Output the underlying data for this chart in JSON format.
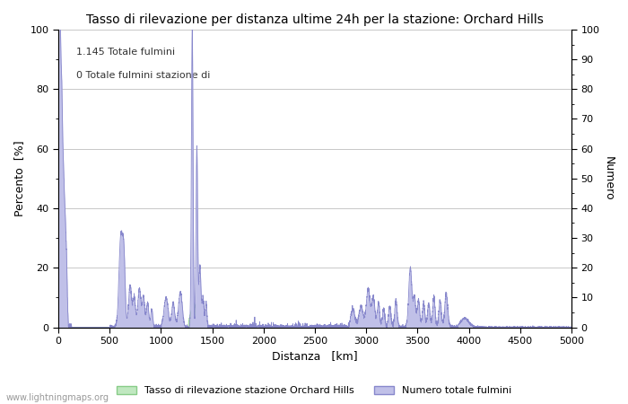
{
  "title": "Tasso di rilevazione per distanza ultime 24h per la stazione: Orchard Hills",
  "xlabel": "Distanza   [km]",
  "ylabel_left": "Percento  [%]",
  "ylabel_right": "Numero",
  "annotation_line1": "1.145 Totale fulmini",
  "annotation_line2": "0 Totale fulmini stazione di",
  "xlim": [
    0,
    5000
  ],
  "ylim": [
    0,
    100
  ],
  "xticks": [
    0,
    500,
    1000,
    1500,
    2000,
    2500,
    3000,
    3500,
    4000,
    4500,
    5000
  ],
  "yticks_left": [
    0,
    20,
    40,
    60,
    80,
    100
  ],
  "yticks_right": [
    0,
    10,
    20,
    30,
    40,
    50,
    60,
    70,
    80,
    90,
    100
  ],
  "legend_label_green": "Tasso di rilevazione stazione Orchard Hills",
  "legend_label_blue": "Numero totale fulmini",
  "watermark": "www.lightningmaps.org",
  "bg_color": "#ffffff",
  "grid_color": "#c8c8c8",
  "blue_fill_color": "#c0c0e8",
  "blue_line_color": "#8888cc",
  "green_fill_color": "#c0e8c0",
  "green_line_color": "#88cc88",
  "minor_tick_color": "#888888"
}
